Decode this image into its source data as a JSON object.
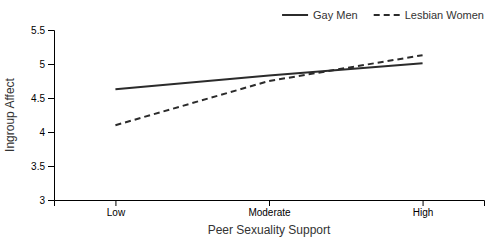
{
  "chart_data": {
    "type": "line",
    "xlabel": "Peer Sexuality Support",
    "ylabel": "Ingroup Affect",
    "categories": [
      "Low",
      "Moderate",
      "High"
    ],
    "series": [
      {
        "name": "Gay Men",
        "color": "#2b2b2b",
        "line_style": "solid",
        "values": [
          4.63,
          4.83,
          5.01
        ]
      },
      {
        "name": "Lesbian Women",
        "color": "#2b2b2b",
        "line_style": "dashed",
        "values": [
          4.1,
          4.75,
          5.13
        ]
      }
    ],
    "ylim": [
      3,
      5.5
    ],
    "yticks": [
      3,
      3.5,
      4,
      4.5,
      5,
      5.5
    ],
    "grid": false,
    "legend": "upper right"
  }
}
